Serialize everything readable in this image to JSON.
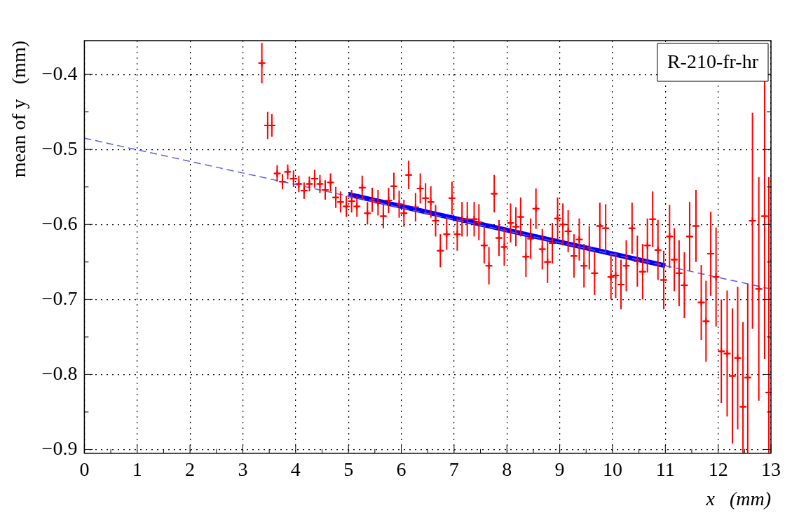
{
  "chart_data": {
    "type": "scatter",
    "xlabel": "x   (mm)",
    "ylabel": "mean of y   (mm)",
    "xlim": [
      0,
      13
    ],
    "xticks": [
      0,
      1,
      2,
      3,
      4,
      5,
      6,
      7,
      8,
      9,
      10,
      11,
      12,
      13
    ],
    "ylim": [
      -0.905,
      -0.355
    ],
    "yticks": [
      {
        "value": -0.9,
        "label": "−0.9"
      },
      {
        "value": -0.8,
        "label": "−0.8"
      },
      {
        "value": -0.7,
        "label": "−0.7"
      },
      {
        "value": -0.6,
        "label": "−0.6"
      },
      {
        "value": -0.5,
        "label": "−0.5"
      },
      {
        "value": -0.4,
        "label": "−0.4"
      }
    ],
    "grid": true,
    "legend": false,
    "annotations": [
      "R-210-fr-hr"
    ],
    "series": [
      {
        "color": "#ff0000",
        "marker": "cross",
        "x": [
          3.36,
          3.47,
          3.55,
          3.65,
          3.75,
          3.85,
          3.96,
          4.06,
          4.16,
          4.26,
          4.36,
          4.46,
          4.56,
          4.66,
          4.76,
          4.85,
          4.96,
          5.06,
          5.16,
          5.26,
          5.36,
          5.45,
          5.56,
          5.66,
          5.76,
          5.86,
          5.96,
          6.05,
          6.14,
          6.27,
          6.36,
          6.46,
          6.56,
          6.65,
          6.74,
          6.86,
          6.96,
          7.06,
          7.15,
          7.25,
          7.38,
          7.47,
          7.57,
          7.66,
          7.76,
          7.85,
          7.95,
          8.07,
          8.17,
          8.26,
          8.36,
          8.45,
          8.55,
          8.67,
          8.77,
          8.86,
          8.96,
          9.06,
          9.16,
          9.27,
          9.37,
          9.46,
          9.56,
          9.66,
          9.76,
          9.87,
          9.97,
          10.06,
          10.16,
          10.26,
          10.37,
          10.47,
          10.57,
          10.66,
          10.76,
          10.86,
          10.97,
          11.08,
          11.17,
          11.26,
          11.36,
          11.46,
          11.58,
          11.68,
          11.77,
          11.86,
          11.96,
          12.06,
          12.17,
          12.27,
          12.37,
          12.47,
          12.56,
          12.65,
          12.77,
          12.88,
          12.96
        ],
        "values": [
          -0.385,
          -0.468,
          -0.468,
          -0.532,
          -0.543,
          -0.53,
          -0.539,
          -0.546,
          -0.555,
          -0.546,
          -0.539,
          -0.546,
          -0.554,
          -0.544,
          -0.564,
          -0.57,
          -0.576,
          -0.569,
          -0.576,
          -0.551,
          -0.585,
          -0.567,
          -0.571,
          -0.589,
          -0.568,
          -0.549,
          -0.573,
          -0.585,
          -0.534,
          -0.577,
          -0.552,
          -0.565,
          -0.57,
          -0.595,
          -0.635,
          -0.613,
          -0.565,
          -0.613,
          -0.593,
          -0.593,
          -0.593,
          -0.597,
          -0.628,
          -0.655,
          -0.559,
          -0.618,
          -0.63,
          -0.598,
          -0.603,
          -0.59,
          -0.643,
          -0.619,
          -0.579,
          -0.633,
          -0.65,
          -0.625,
          -0.592,
          -0.6,
          -0.609,
          -0.642,
          -0.62,
          -0.655,
          -0.631,
          -0.665,
          -0.602,
          -0.605,
          -0.67,
          -0.668,
          -0.68,
          -0.655,
          -0.605,
          -0.649,
          -0.663,
          -0.628,
          -0.593,
          -0.634,
          -0.674,
          -0.616,
          -0.647,
          -0.665,
          -0.681,
          -0.616,
          -0.602,
          -0.704,
          -0.729,
          -0.639,
          -0.67,
          -0.769,
          -0.772,
          -0.802,
          -0.778,
          -0.843,
          -0.804,
          -0.595,
          -0.686,
          -0.589,
          -0.824
        ],
        "errors": [
          0.027,
          0.018,
          0.015,
          0.011,
          0.01,
          0.01,
          0.011,
          0.011,
          0.011,
          0.01,
          0.012,
          0.012,
          0.013,
          0.012,
          0.014,
          0.014,
          0.014,
          0.015,
          0.014,
          0.016,
          0.015,
          0.016,
          0.017,
          0.016,
          0.017,
          0.018,
          0.018,
          0.018,
          0.019,
          0.019,
          0.02,
          0.02,
          0.021,
          0.021,
          0.022,
          0.021,
          0.022,
          0.022,
          0.023,
          0.023,
          0.023,
          0.024,
          0.024,
          0.025,
          0.025,
          0.024,
          0.025,
          0.026,
          0.026,
          0.026,
          0.027,
          0.027,
          0.027,
          0.027,
          0.028,
          0.027,
          0.028,
          0.028,
          0.028,
          0.029,
          0.028,
          0.029,
          0.029,
          0.029,
          0.031,
          0.032,
          0.03,
          0.03,
          0.033,
          0.034,
          0.034,
          0.034,
          0.037,
          0.036,
          0.037,
          0.04,
          0.039,
          0.042,
          0.042,
          0.044,
          0.044,
          0.046,
          0.048,
          0.05,
          0.054,
          0.056,
          0.066,
          0.069,
          0.084,
          0.09,
          0.095,
          [
            -0.905,
            -0.73
          ],
          [
            -0.905,
            -0.679
          ],
          0.144,
          0.149,
          0.19,
          [
            -0.905,
            -0.537
          ]
        ],
        "xerrors": [
          0.05,
          0.05,
          0.05,
          0.05,
          0.05,
          0.05,
          0.05,
          0.05,
          0.05,
          0.05,
          0.05,
          0.05,
          0.05,
          0.05,
          0.05,
          0.05,
          0.05,
          0.05,
          0.05,
          0.05,
          0.05,
          0.05,
          0.05,
          0.05,
          0.05,
          0.05,
          0.05,
          0.05,
          0.05,
          0.05,
          0.05,
          0.05,
          0.05,
          0.05,
          0.05,
          0.05,
          0.05,
          0.05,
          0.05,
          0.05,
          0.05,
          0.05,
          0.05,
          0.05,
          0.05,
          0.05,
          0.05,
          0.05,
          0.05,
          0.05,
          0.05,
          0.05,
          0.05,
          0.05,
          0.05,
          0.05,
          0.05,
          0.05,
          0.05,
          0.05,
          0.05,
          0.05,
          0.05,
          0.05,
          0.05,
          0.05,
          0.05,
          0.05,
          0.05,
          0.05,
          0.05,
          0.05,
          0.05,
          0.05,
          0.05,
          0.05,
          0.05,
          0.05,
          0.05,
          0.05,
          0.05,
          0.05,
          0.05,
          0.05,
          0.05,
          0.05,
          0.05,
          0.05,
          0.05,
          0.05,
          0.05,
          0.05,
          0.05,
          0.05,
          0.05,
          0.05,
          0.05
        ]
      },
      {
        "type": "line",
        "color": "#5a5aff",
        "line_style": "dashed",
        "x": [
          0,
          13
        ],
        "values": [
          -0.485,
          -0.686
        ]
      },
      {
        "type": "line",
        "color": "#0000ff",
        "line_style": "solid",
        "x": [
          5,
          11
        ],
        "values": [
          -0.56,
          -0.655
        ]
      }
    ]
  }
}
